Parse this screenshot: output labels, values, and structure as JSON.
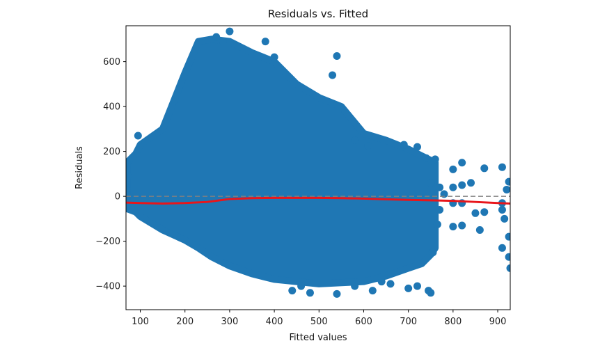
{
  "chart_data": {
    "type": "scatter",
    "title": "Residuals vs. Fitted",
    "xlabel": "Fitted values",
    "ylabel": "Residuals",
    "xlim": [
      68,
      928
    ],
    "ylim": [
      -505,
      760
    ],
    "xticks": [
      100,
      200,
      300,
      400,
      500,
      600,
      700,
      800,
      900
    ],
    "xtick_labels": [
      "100",
      "200",
      "300",
      "400",
      "500",
      "600",
      "700",
      "800",
      "900"
    ],
    "yticks": [
      -400,
      -200,
      0,
      200,
      400,
      600
    ],
    "ytick_labels": [
      "−400",
      "−200",
      "0",
      "200",
      "400",
      "600"
    ],
    "grid": false,
    "scatter_color": "#1f77b4",
    "reference_line": {
      "y": 0,
      "style": "dashed",
      "color": "#808080"
    },
    "smooth_line": {
      "color": "#e8161b",
      "x": [
        68,
        100,
        150,
        200,
        250,
        300,
        350,
        400,
        450,
        500,
        550,
        600,
        650,
        700,
        750,
        800,
        850,
        900,
        928
      ],
      "y": [
        -28,
        -30,
        -32,
        -30,
        -25,
        -12,
        -8,
        -7,
        -7,
        -7,
        -8,
        -10,
        -13,
        -16,
        -18,
        -20,
        -25,
        -30,
        -32
      ]
    },
    "envelope": {
      "x": [
        70,
        90,
        100,
        150,
        200,
        230,
        260,
        300,
        350,
        400,
        450,
        500,
        550,
        600,
        650,
        700,
        730,
        750,
        760
      ],
      "upper": [
        150,
        190,
        230,
        300,
        550,
        690,
        700,
        690,
        640,
        600,
        500,
        440,
        400,
        280,
        250,
        210,
        180,
        160,
        150
      ],
      "lower": [
        -55,
        -70,
        -90,
        -150,
        -195,
        -230,
        -270,
        -310,
        -345,
        -370,
        -380,
        -390,
        -385,
        -380,
        -355,
        -320,
        -300,
        -260,
        -230
      ]
    },
    "points": [
      {
        "x": 70,
        "y": 150
      },
      {
        "x": 72,
        "y": 90
      },
      {
        "x": 70,
        "y": 30
      },
      {
        "x": 95,
        "y": 270
      },
      {
        "x": 300,
        "y": 735
      },
      {
        "x": 285,
        "y": 690
      },
      {
        "x": 270,
        "y": 710
      },
      {
        "x": 380,
        "y": 690
      },
      {
        "x": 400,
        "y": 620
      },
      {
        "x": 540,
        "y": 625
      },
      {
        "x": 530,
        "y": 540
      },
      {
        "x": 580,
        "y": 250
      },
      {
        "x": 610,
        "y": 225
      },
      {
        "x": 690,
        "y": 230
      },
      {
        "x": 720,
        "y": 220
      },
      {
        "x": 740,
        "y": 170
      },
      {
        "x": 760,
        "y": 165
      },
      {
        "x": 750,
        "y": 60
      },
      {
        "x": 770,
        "y": 40
      },
      {
        "x": 780,
        "y": 10
      },
      {
        "x": 800,
        "y": 120
      },
      {
        "x": 820,
        "y": 150
      },
      {
        "x": 800,
        "y": 40
      },
      {
        "x": 820,
        "y": 50
      },
      {
        "x": 840,
        "y": 60
      },
      {
        "x": 870,
        "y": 125
      },
      {
        "x": 910,
        "y": 130
      },
      {
        "x": 800,
        "y": -30
      },
      {
        "x": 820,
        "y": -30
      },
      {
        "x": 870,
        "y": -70
      },
      {
        "x": 850,
        "y": -75
      },
      {
        "x": 860,
        "y": -150
      },
      {
        "x": 800,
        "y": -135
      },
      {
        "x": 820,
        "y": -130
      },
      {
        "x": 910,
        "y": -30
      },
      {
        "x": 910,
        "y": -60
      },
      {
        "x": 915,
        "y": -100
      },
      {
        "x": 910,
        "y": -230
      },
      {
        "x": 925,
        "y": -180
      },
      {
        "x": 925,
        "y": -270
      },
      {
        "x": 928,
        "y": -320
      },
      {
        "x": 925,
        "y": 65
      },
      {
        "x": 920,
        "y": 30
      },
      {
        "x": 750,
        "y": -430
      },
      {
        "x": 745,
        "y": -420
      },
      {
        "x": 620,
        "y": -420
      },
      {
        "x": 540,
        "y": -435
      },
      {
        "x": 480,
        "y": -430
      },
      {
        "x": 440,
        "y": -420
      },
      {
        "x": 460,
        "y": -400
      },
      {
        "x": 700,
        "y": -410
      },
      {
        "x": 720,
        "y": -400
      },
      {
        "x": 765,
        "y": -125
      },
      {
        "x": 770,
        "y": -60
      },
      {
        "x": 755,
        "y": -250
      },
      {
        "x": 580,
        "y": -400
      },
      {
        "x": 640,
        "y": -380
      },
      {
        "x": 660,
        "y": -390
      }
    ]
  }
}
